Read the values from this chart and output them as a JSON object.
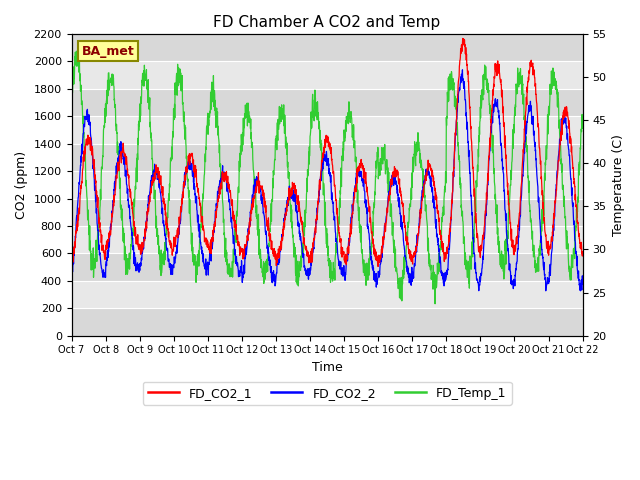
{
  "title": "FD Chamber A CO2 and Temp",
  "xlabel": "Time",
  "ylabel_left": "CO2 (ppm)",
  "ylabel_right": "Temperature (C)",
  "ylim_left": [
    0,
    2200
  ],
  "ylim_right": [
    20,
    55
  ],
  "yticks_left": [
    0,
    200,
    400,
    600,
    800,
    1000,
    1200,
    1400,
    1600,
    1800,
    2000,
    2200
  ],
  "yticks_right": [
    20,
    25,
    30,
    35,
    40,
    45,
    50,
    55
  ],
  "xtick_labels": [
    "Oct 7",
    "Oct 8",
    "Oct 9",
    "Oct 10",
    "Oct 11",
    "Oct 12",
    "Oct 13",
    "Oct 14",
    "Oct 15",
    "Oct 16",
    "Oct 17",
    "Oct 18",
    "Oct 19",
    "Oct 20",
    "Oct 21",
    "Oct 22"
  ],
  "legend_labels": [
    "FD_CO2_1",
    "FD_CO2_2",
    "FD_Temp_1"
  ],
  "line_colors": [
    "red",
    "blue",
    "limegreen"
  ],
  "box_label": "BA_met",
  "box_facecolor": "#FFFF99",
  "box_edgecolor": "#888800",
  "box_textcolor": "darkred",
  "plot_bg_color": "#E8E8E8",
  "band_colors": [
    "#D8D8D8",
    "#E8E8E8"
  ],
  "n_points": 2000,
  "co2_1_peaks": [
    1430,
    1350,
    1200,
    1300,
    1160,
    1100,
    1080,
    1440,
    1250,
    1200,
    1230,
    2150,
    1970,
    1980,
    1640,
    1490
  ],
  "co2_1_troughs": [
    580,
    640,
    620,
    680,
    620,
    590,
    560,
    590,
    540,
    550,
    560,
    600,
    630,
    640,
    620,
    610
  ],
  "co2_2_peaks": [
    1600,
    1350,
    1200,
    1250,
    1180,
    1120,
    1050,
    1300,
    1200,
    1150,
    1200,
    1880,
    1700,
    1650,
    1580,
    1450
  ],
  "co2_2_troughs": [
    430,
    480,
    480,
    500,
    470,
    410,
    450,
    460,
    400,
    420,
    410,
    380,
    380,
    380,
    370,
    360
  ],
  "temp_peaks_c": [
    52,
    50,
    50,
    50,
    48,
    46,
    46,
    47,
    46,
    41,
    42,
    50,
    50,
    50,
    50,
    48
  ],
  "temp_troughs_c": [
    28,
    28,
    28,
    28,
    27,
    27,
    27,
    27,
    27,
    26,
    26,
    27,
    28,
    28,
    28,
    28
  ]
}
